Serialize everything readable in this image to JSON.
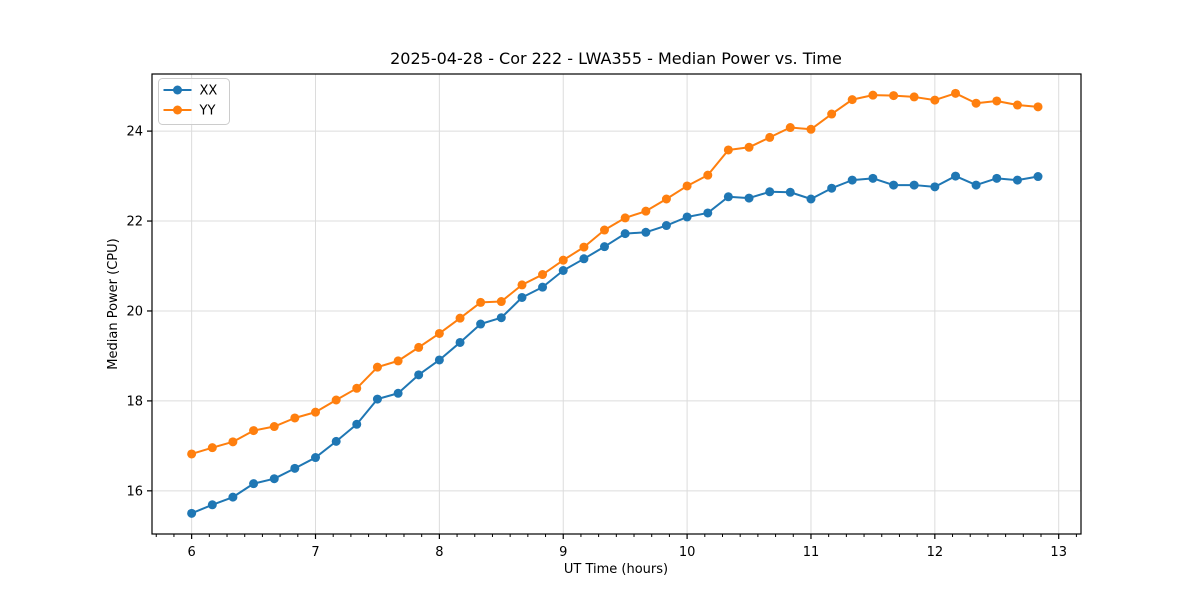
{
  "figure": {
    "background": "#ffffff"
  },
  "chart_data": {
    "type": "line",
    "title": "2025-04-28 - Cor 222 - LWA355 - Median Power vs. Time",
    "xlabel": "UT Time (hours)",
    "ylabel": "Median Power (CPU)",
    "xlim": [
      5.68,
      13.18
    ],
    "ylim": [
      15.04,
      25.27
    ],
    "x_ticks": [
      6,
      7,
      8,
      9,
      10,
      11,
      12,
      13
    ],
    "y_ticks": [
      16,
      18,
      20,
      22,
      24
    ],
    "x_minor_subdivisions": 7,
    "grid": true,
    "grid_color": "#dcdcdc",
    "spine_color": "#000000",
    "legend_position": "upper-left",
    "x": [
      6.0,
      6.167,
      6.333,
      6.5,
      6.667,
      6.833,
      7.0,
      7.167,
      7.333,
      7.5,
      7.667,
      7.833,
      8.0,
      8.167,
      8.333,
      8.5,
      8.667,
      8.833,
      9.0,
      9.167,
      9.333,
      9.5,
      9.667,
      9.833,
      10.0,
      10.167,
      10.333,
      10.5,
      10.667,
      10.833,
      11.0,
      11.167,
      11.333,
      11.5,
      11.667,
      11.833,
      12.0,
      12.167,
      12.333,
      12.5,
      12.667,
      12.833
    ],
    "series": [
      {
        "name": "XX",
        "color": "#1f77b4",
        "values": [
          15.5,
          15.69,
          15.86,
          16.16,
          16.27,
          16.5,
          16.74,
          17.1,
          17.48,
          18.04,
          18.17,
          18.58,
          18.91,
          19.3,
          19.71,
          19.85,
          20.3,
          20.53,
          20.9,
          21.16,
          21.43,
          21.72,
          21.75,
          21.9,
          22.09,
          22.18,
          22.54,
          22.51,
          22.65,
          22.64,
          22.49,
          22.73,
          22.91,
          22.95,
          22.8,
          22.8,
          22.76,
          23.0,
          22.8,
          22.95,
          22.91,
          22.99
        ]
      },
      {
        "name": "YY",
        "color": "#ff7f0e",
        "values": [
          16.82,
          16.96,
          17.09,
          17.34,
          17.43,
          17.62,
          17.75,
          18.02,
          18.28,
          18.75,
          18.89,
          19.19,
          19.5,
          19.84,
          20.19,
          20.21,
          20.58,
          20.81,
          21.13,
          21.42,
          21.8,
          22.07,
          22.22,
          22.49,
          22.78,
          23.02,
          23.58,
          23.64,
          23.86,
          24.08,
          24.04,
          24.38,
          24.7,
          24.8,
          24.79,
          24.76,
          24.69,
          24.84,
          24.62,
          24.67,
          24.58,
          24.54
        ]
      }
    ]
  }
}
